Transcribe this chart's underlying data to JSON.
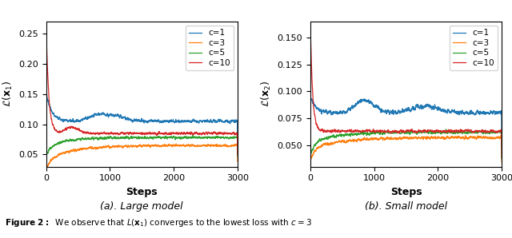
{
  "title_a": "(a). Large model",
  "title_b": "(b). Small model",
  "xlabel": "Steps",
  "ylabel_a": "$\\mathcal{L}(\\mathbf{x}_1)$",
  "ylabel_b": "$\\mathcal{L}(\\mathbf{x}_2)$",
  "legend_labels": [
    "c=1",
    "c=3",
    "c=5",
    "c=10"
  ],
  "colors": [
    "#1f77b4",
    "#ff7f0e",
    "#2ca02c",
    "#d62728"
  ],
  "xlim": [
    0,
    3000
  ],
  "ylim_a": [
    0.03,
    0.27
  ],
  "ylim_b": [
    0.03,
    0.165
  ],
  "yticks_a": [
    0.05,
    0.1,
    0.15,
    0.2,
    0.25
  ],
  "yticks_b": [
    0.05,
    0.075,
    0.1,
    0.125,
    0.15
  ],
  "xticks": [
    0,
    1000,
    2000,
    3000
  ],
  "seed": 42
}
